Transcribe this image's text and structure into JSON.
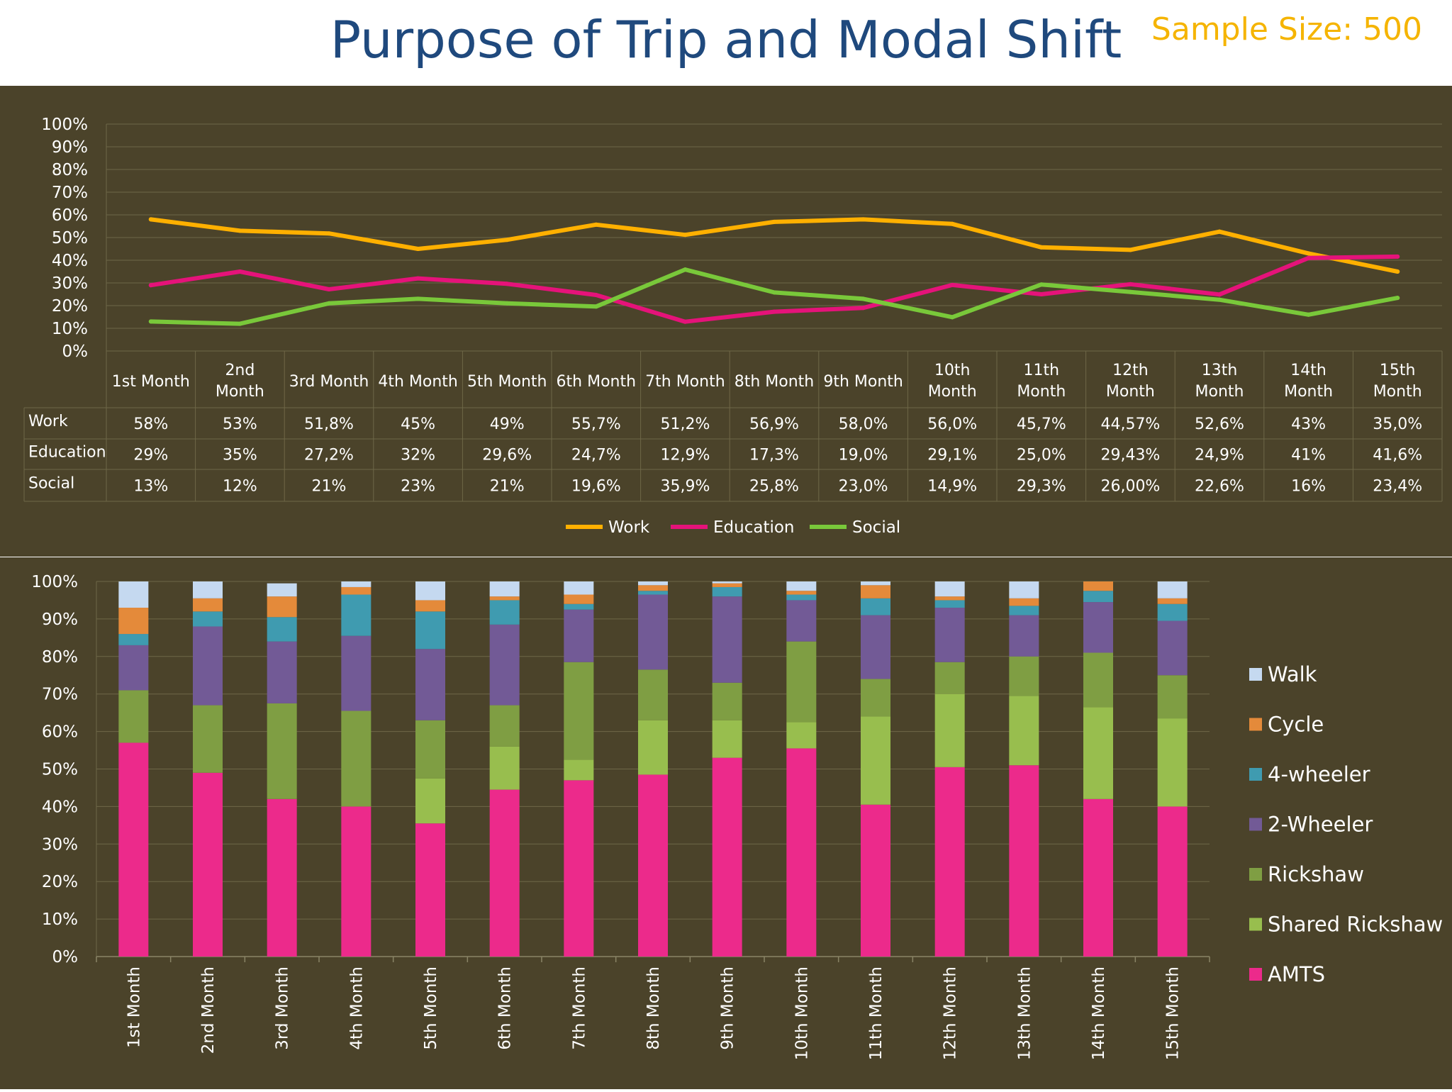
{
  "header": {
    "title": "Purpose of Trip and Modal Shift",
    "sample_size": "Sample Size: 500"
  },
  "colors": {
    "background": "#4b432a",
    "title": "#1f497d",
    "sample": "#f5b400",
    "work": "#ffb000",
    "education": "#e5137a",
    "social": "#79c83a",
    "walk": "#c5d9f0",
    "cycle": "#e48a3a",
    "four_wheeler": "#3f9bb0",
    "two_wheeler": "#725a96",
    "rickshaw": "#7f9e43",
    "shared_rickshaw": "#98be4e",
    "amts": "#ec2a8b"
  },
  "chart_data": [
    {
      "type": "line",
      "title": "",
      "ylim": [
        0,
        100
      ],
      "y_ticks": [
        "0%",
        "10%",
        "20%",
        "30%",
        "40%",
        "50%",
        "60%",
        "70%",
        "80%",
        "90%",
        "100%"
      ],
      "categories": [
        "1st Month",
        "2nd Month",
        "3rd Month",
        "4th Month",
        "5th Month",
        "6th Month",
        "7th Month",
        "8th Month",
        "9th Month",
        "10th Month",
        "11th Month",
        "12th Month",
        "13th Month",
        "14th Month",
        "15th Month"
      ],
      "category_lines": [
        [
          "1st Month"
        ],
        [
          "2nd",
          "Month"
        ],
        [
          "3rd Month"
        ],
        [
          "4th Month"
        ],
        [
          "5th Month"
        ],
        [
          "6th Month"
        ],
        [
          "7th Month"
        ],
        [
          "8th Month"
        ],
        [
          "9th Month"
        ],
        [
          "10th",
          "Month"
        ],
        [
          "11th",
          "Month"
        ],
        [
          "12th",
          "Month"
        ],
        [
          "13th",
          "Month"
        ],
        [
          "14th",
          "Month"
        ],
        [
          "15th",
          "Month"
        ]
      ],
      "grid": true,
      "legend": "bottom",
      "series": [
        {
          "name": "Work",
          "color": "#ffb000",
          "values": [
            58,
            53,
            51.8,
            45,
            49,
            55.7,
            51.2,
            56.9,
            58.0,
            56.0,
            45.7,
            44.57,
            52.6,
            43,
            35.0
          ],
          "labels": [
            "58%",
            "53%",
            "51,8%",
            "45%",
            "49%",
            "55,7%",
            "51,2%",
            "56,9%",
            "58,0%",
            "56,0%",
            "45,7%",
            "44,57%",
            "52,6%",
            "43%",
            "35,0%"
          ]
        },
        {
          "name": "Education",
          "color": "#e5137a",
          "values": [
            29,
            35,
            27.2,
            32,
            29.6,
            24.7,
            12.9,
            17.3,
            19.0,
            29.1,
            25.0,
            29.43,
            24.9,
            41,
            41.6
          ],
          "labels": [
            "29%",
            "35%",
            "27,2%",
            "32%",
            "29,6%",
            "24,7%",
            "12,9%",
            "17,3%",
            "19,0%",
            "29,1%",
            "25,0%",
            "29,43%",
            "24,9%",
            "41%",
            "41,6%"
          ]
        },
        {
          "name": "Social",
          "color": "#79c83a",
          "values": [
            13,
            12,
            21,
            23,
            21,
            19.6,
            35.9,
            25.8,
            23.0,
            14.9,
            29.3,
            26.0,
            22.6,
            16,
            23.4
          ],
          "labels": [
            "13%",
            "12%",
            "21%",
            "23%",
            "21%",
            "19,6%",
            "35,9%",
            "25,8%",
            "23,0%",
            "14,9%",
            "29,3%",
            "26,00%",
            "22,6%",
            "16%",
            "23,4%"
          ]
        }
      ]
    },
    {
      "type": "bar",
      "stacked": true,
      "title": "",
      "ylim": [
        0,
        100
      ],
      "y_ticks": [
        "0%",
        "10%",
        "20%",
        "30%",
        "40%",
        "50%",
        "60%",
        "70%",
        "80%",
        "90%",
        "100%"
      ],
      "categories": [
        "1st Month",
        "2nd Month",
        "3rd Month",
        "4th Month",
        "5th Month",
        "6th Month",
        "7th Month",
        "8th Month",
        "9th Month",
        "10th Month",
        "11th Month",
        "12th Month",
        "13th Month",
        "14th Month",
        "15th Month"
      ],
      "grid": true,
      "legend": "right",
      "series": [
        {
          "name": "AMTS",
          "color": "#ec2a8b",
          "values": [
            57,
            49,
            42,
            40,
            35.5,
            44.5,
            47,
            48.5,
            53,
            55.5,
            40.5,
            50.5,
            51,
            42,
            40
          ]
        },
        {
          "name": "Shared Rickshaw",
          "color": "#98be4e",
          "values": [
            0,
            0,
            0,
            0,
            12,
            11.5,
            5.5,
            14.5,
            10,
            7,
            23.5,
            19.5,
            18.5,
            24.5,
            23.5
          ]
        },
        {
          "name": "Rickshaw",
          "color": "#7f9e43",
          "values": [
            14,
            18,
            25.5,
            25.5,
            15.5,
            11,
            26,
            13.5,
            10,
            21.5,
            10,
            8.5,
            10.5,
            14.5,
            11.5
          ]
        },
        {
          "name": "2-Wheeler",
          "color": "#725a96",
          "values": [
            12,
            21,
            16.5,
            20,
            19,
            21.5,
            14,
            20,
            23,
            11,
            17,
            14.5,
            11,
            13.5,
            14.5
          ]
        },
        {
          "name": "4-wheeler",
          "color": "#3f9bb0",
          "values": [
            3,
            4,
            6.5,
            11,
            10,
            6.5,
            1.5,
            1,
            2.5,
            1.5,
            4.5,
            2,
            2.5,
            3,
            4.5
          ]
        },
        {
          "name": "Cycle",
          "color": "#e48a3a",
          "values": [
            7,
            3.5,
            5.5,
            2,
            3,
            1,
            2.5,
            1.5,
            1,
            1,
            3.5,
            1,
            2,
            2.5,
            1.5
          ]
        },
        {
          "name": "Walk",
          "color": "#c5d9f0",
          "values": [
            7,
            4.5,
            3.5,
            1.5,
            5,
            4,
            3.5,
            1,
            0.5,
            2.5,
            1,
            4,
            4.5,
            0,
            4.5
          ]
        }
      ]
    }
  ]
}
